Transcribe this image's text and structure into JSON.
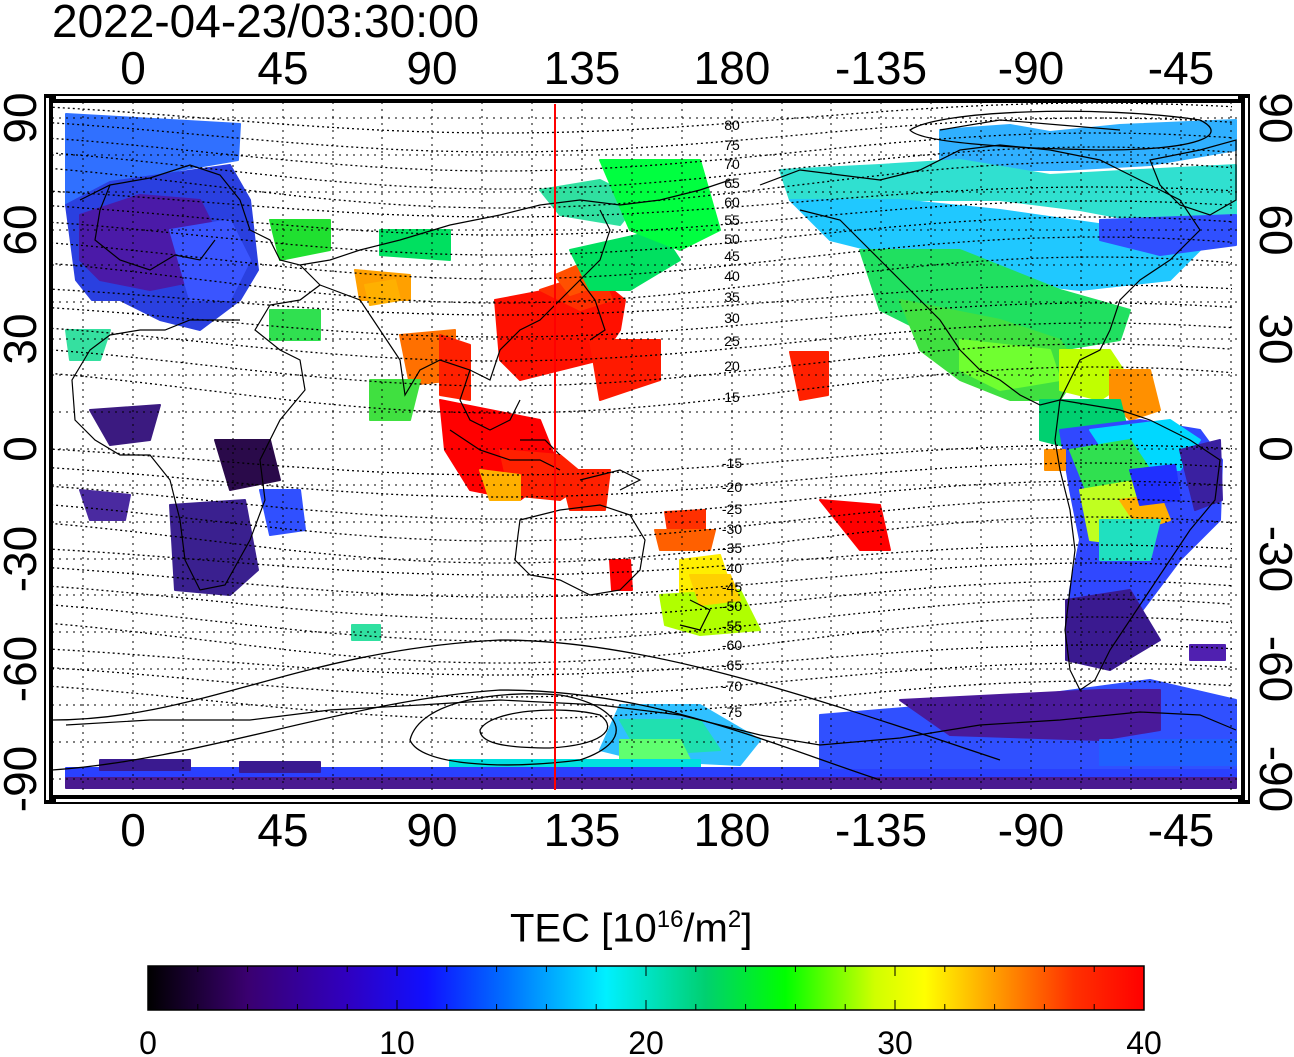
{
  "title": "2022-04-23/03:30:00",
  "map": {
    "top_lon_labels": [
      "0",
      "45",
      "90",
      "135",
      "180",
      "-135",
      "-90",
      "-45"
    ],
    "bottom_lon_labels": [
      "0",
      "45",
      "90",
      "135",
      "180",
      "-135",
      "-90",
      "-45"
    ],
    "left_lat_labels": [
      "90",
      "60",
      "30",
      "0",
      "-30",
      "-60",
      "-90"
    ],
    "right_lat_labels": [
      "90",
      "60",
      "30",
      "0",
      "-30",
      "-60",
      "-90"
    ],
    "contour_labels": [
      "80",
      "75",
      "70",
      "65",
      "60",
      "55",
      "50",
      "45",
      "40",
      "35",
      "30",
      "25",
      "20",
      "15",
      "-15",
      "-20",
      "-25",
      "-30",
      "-35",
      "-40",
      "-45",
      "-50",
      "-55",
      "-60",
      "-65",
      "-70",
      "-75"
    ],
    "reference_meridian_color": "#ff0000"
  },
  "colorbar": {
    "label_prefix": "TEC  [10",
    "label_exp1": "16",
    "label_mid": "/m",
    "label_exp2": "2",
    "label_suffix": "]",
    "ticks": [
      "0",
      "10",
      "20",
      "30",
      "40"
    ],
    "min": 0,
    "max": 40,
    "colors": [
      "#000000",
      "#3a0070",
      "#2800d8",
      "#0044ff",
      "#00a8ff",
      "#00ffff",
      "#00e060",
      "#00ff00",
      "#c8ff00",
      "#ffff00",
      "#ffa000",
      "#ff5000",
      "#ff0000"
    ]
  }
}
